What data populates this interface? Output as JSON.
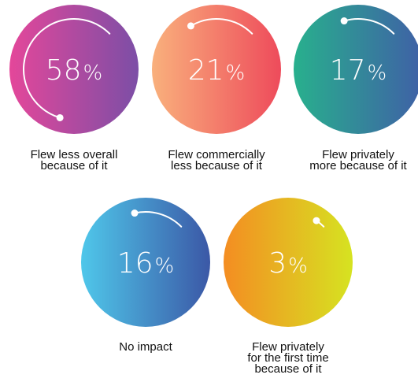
{
  "chart_data": {
    "type": "radial-progress",
    "unit": "%",
    "items": [
      {
        "value": 58,
        "label": "Flew less overall\nbecause of it",
        "colors": [
          "#e4479a",
          "#7c4ea6"
        ]
      },
      {
        "value": 21,
        "label": "Flew commercially\nless because of it",
        "colors": [
          "#f9b07c",
          "#ee4b5b"
        ]
      },
      {
        "value": 17,
        "label": "Flew privately\nmore because of it",
        "colors": [
          "#28b08d",
          "#3f60a6"
        ]
      },
      {
        "value": 16,
        "label": "No impact",
        "colors": [
          "#4fc7ea",
          "#3b58a6"
        ]
      },
      {
        "value": 3,
        "label": "Flew privately\nfor the first time\nbecause of it",
        "colors": [
          "#f48d22",
          "#d6e321"
        ]
      }
    ]
  }
}
